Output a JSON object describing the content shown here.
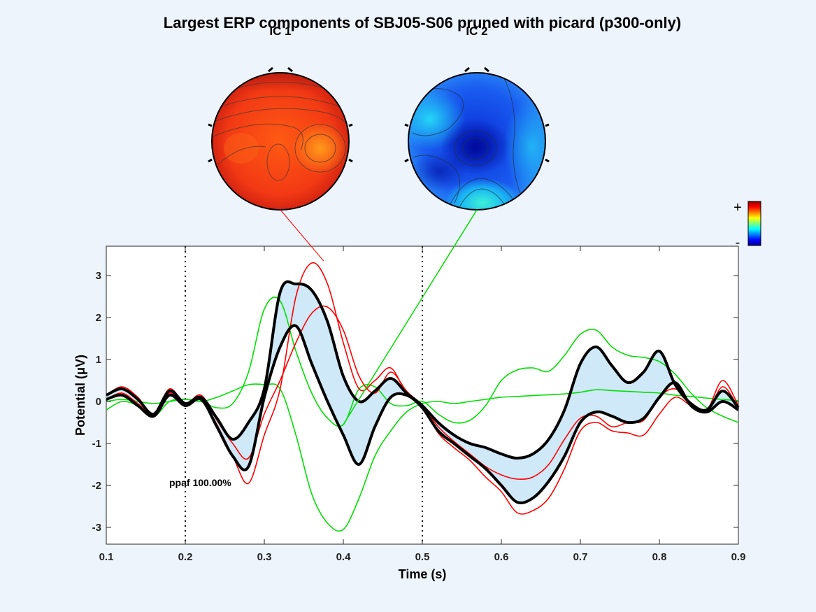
{
  "title": "Largest ERP components of SBJ05-S06 pruned with picard (p300-only)",
  "colors": {
    "background": "#edf4fc",
    "envelope_fill": "#cfe9f8",
    "data_envelope": "#000000",
    "ic1_projection": "#ff0000",
    "ic2_projection": "#00e000"
  },
  "topoplots": [
    {
      "label": "IC 1",
      "colormap_region": "positive",
      "connector_time": 0.375,
      "connector_value": 3.35
    },
    {
      "label": "IC 2",
      "colormap_region": "negative",
      "connector_time": 0.4,
      "connector_value": -0.55
    }
  ],
  "colorbar": {
    "plus_label": "+",
    "minus_label": "-",
    "colormap": "jet"
  },
  "chart_data": {
    "type": "line",
    "xlabel": "Time (s)",
    "ylabel": "Potential (μV)",
    "xlim": [
      0.1,
      0.9
    ],
    "ylim": [
      -3.4,
      3.7
    ],
    "xticks": [
      0.1,
      0.2,
      0.3,
      0.4,
      0.5,
      0.6,
      0.7,
      0.8,
      0.9
    ],
    "yticks": [
      -3,
      -2,
      -1,
      0,
      1,
      2,
      3
    ],
    "vlines": [
      0.2,
      0.5
    ],
    "annotation": "ppaf 100.00%",
    "x": [
      0.1,
      0.12,
      0.14,
      0.16,
      0.18,
      0.2,
      0.22,
      0.24,
      0.26,
      0.28,
      0.3,
      0.32,
      0.34,
      0.36,
      0.38,
      0.4,
      0.42,
      0.44,
      0.46,
      0.48,
      0.5,
      0.52,
      0.54,
      0.56,
      0.58,
      0.6,
      0.62,
      0.64,
      0.66,
      0.68,
      0.7,
      0.72,
      0.74,
      0.76,
      0.78,
      0.8,
      0.82,
      0.84,
      0.86,
      0.88,
      0.9
    ],
    "series": [
      {
        "role": "envelope-upper",
        "style": "data",
        "values": [
          0.15,
          0.3,
          0.05,
          -0.3,
          0.25,
          -0.05,
          0.1,
          -0.4,
          -0.9,
          -0.5,
          0.3,
          2.6,
          2.8,
          2.65,
          1.9,
          0.6,
          0.0,
          0.25,
          0.55,
          0.2,
          -0.1,
          -0.5,
          -0.8,
          -1.0,
          -1.1,
          -1.25,
          -1.35,
          -1.25,
          -0.9,
          -0.2,
          0.9,
          1.3,
          0.85,
          0.45,
          0.7,
          1.2,
          0.4,
          -0.05,
          -0.2,
          0.25,
          -0.15
        ]
      },
      {
        "role": "envelope-lower",
        "style": "data",
        "values": [
          0.05,
          0.15,
          -0.1,
          -0.35,
          0.15,
          -0.1,
          0.05,
          -0.6,
          -1.3,
          -1.55,
          0.1,
          1.3,
          1.8,
          0.9,
          0.0,
          -0.8,
          -1.5,
          -0.6,
          0.1,
          0.15,
          -0.15,
          -0.7,
          -1.0,
          -1.3,
          -1.6,
          -2.0,
          -2.4,
          -2.3,
          -1.9,
          -1.3,
          -0.5,
          -0.25,
          -0.35,
          -0.5,
          -0.4,
          0.1,
          0.45,
          -0.1,
          -0.25,
          0.0,
          -0.2
        ]
      },
      {
        "role": "ic1-upper",
        "style": "ic1",
        "values": [
          0.15,
          0.35,
          0.1,
          -0.3,
          0.3,
          -0.05,
          0.15,
          -0.45,
          -1.0,
          -1.35,
          -0.3,
          0.5,
          1.4,
          2.1,
          2.25,
          1.7,
          0.6,
          0.2,
          0.7,
          0.25,
          -0.1,
          -0.6,
          -0.95,
          -1.25,
          -1.55,
          -1.75,
          -1.85,
          -1.8,
          -1.5,
          -0.9,
          -0.4,
          -0.35,
          -0.6,
          -0.5,
          -0.45,
          0.1,
          0.3,
          -0.05,
          -0.2,
          0.5,
          -0.1
        ]
      },
      {
        "role": "ic1-lower",
        "style": "ic1",
        "values": [
          0.05,
          0.2,
          -0.05,
          -0.3,
          0.2,
          -0.1,
          0.05,
          -0.55,
          -1.3,
          -1.95,
          -0.8,
          0.3,
          2.5,
          3.3,
          2.8,
          1.4,
          0.3,
          0.5,
          0.8,
          0.2,
          -0.1,
          -0.75,
          -1.1,
          -1.4,
          -1.8,
          -2.15,
          -2.65,
          -2.6,
          -2.3,
          -1.6,
          -0.7,
          -0.5,
          -0.7,
          -0.75,
          -0.8,
          -0.3,
          0.1,
          -0.1,
          -0.25,
          0.35,
          -0.15
        ]
      },
      {
        "role": "ic2-upper",
        "style": "ic2",
        "values": [
          -0.2,
          0.0,
          -0.1,
          -0.35,
          0.0,
          0.05,
          0.0,
          -0.15,
          -0.05,
          0.7,
          2.2,
          2.4,
          1.2,
          0.2,
          -0.4,
          -0.55,
          0.3,
          0.35,
          -0.05,
          -0.1,
          0.0,
          -0.3,
          -0.5,
          -0.45,
          -0.1,
          0.5,
          0.75,
          0.8,
          0.72,
          1.1,
          1.6,
          1.7,
          1.3,
          1.1,
          1.05,
          0.95,
          0.65,
          0.2,
          -0.15,
          -0.35,
          -0.5
        ]
      },
      {
        "role": "ic2-lower",
        "style": "ic2",
        "values": [
          0.0,
          0.05,
          0.0,
          -0.05,
          0.0,
          0.05,
          0.0,
          0.1,
          0.25,
          0.4,
          0.4,
          0.3,
          -0.8,
          -2.2,
          -2.9,
          -3.05,
          -2.3,
          -1.3,
          -0.7,
          -0.25,
          -0.05,
          0.0,
          -0.05,
          0.0,
          0.05,
          0.1,
          0.12,
          0.14,
          0.16,
          0.18,
          0.22,
          0.28,
          0.26,
          0.24,
          0.22,
          0.2,
          0.15,
          0.12,
          0.08,
          0.05,
          0.02
        ]
      }
    ]
  }
}
